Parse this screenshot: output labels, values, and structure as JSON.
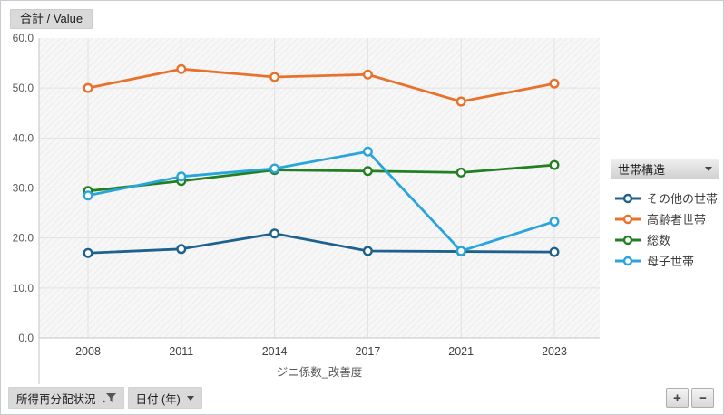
{
  "header": {
    "value_button_label": "合計 / Value"
  },
  "chart_data": {
    "type": "line",
    "x_categories": [
      "2008",
      "2011",
      "2014",
      "2017",
      "2021",
      "2023"
    ],
    "series": [
      {
        "name": "その他の世帯",
        "color": "#1f618d",
        "values": [
          17.0,
          17.8,
          20.9,
          17.4,
          17.3,
          17.2
        ]
      },
      {
        "name": "高齢者世帯",
        "color": "#e8722c",
        "values": [
          50.0,
          53.8,
          52.2,
          52.7,
          47.3,
          50.9
        ]
      },
      {
        "name": "総数",
        "color": "#228022",
        "values": [
          29.4,
          31.4,
          33.6,
          33.4,
          33.1,
          34.6
        ]
      },
      {
        "name": "母子世帯",
        "color": "#29a5dc",
        "values": [
          28.5,
          32.3,
          33.9,
          37.3,
          17.4,
          23.3
        ]
      }
    ],
    "title": "",
    "xlabel": "ジニ係数_改善度",
    "ylabel": "",
    "ylim": [
      0,
      60
    ],
    "yticks": [
      0,
      10,
      20,
      30,
      40,
      50,
      60
    ],
    "ytick_labels": [
      "0.0",
      "10.0",
      "20.0",
      "30.0",
      "40.0",
      "50.0",
      "60.0"
    ],
    "legend_title": "世帯構造",
    "legend_position": "right",
    "grid": true,
    "plot_background": "hatched",
    "marker": "open-circle"
  },
  "toolbar": {
    "dimension_filter_label": "所得再分配状況",
    "date_dimension_label": "日付 (年)",
    "zoom_in_label": "+",
    "zoom_out_label": "−"
  },
  "colors": {
    "grid": "#e2e2e2",
    "axis": "#c4c4c4",
    "tick_text": "#595959",
    "category_text": "#404040",
    "button_bg": "#d9d9d9"
  }
}
